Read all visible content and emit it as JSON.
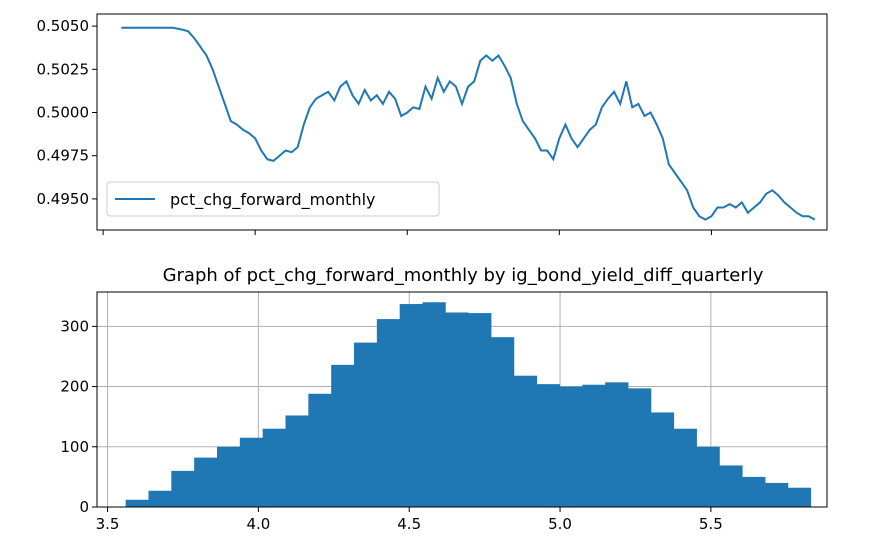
{
  "chart_data": [
    {
      "type": "line",
      "title": "",
      "xlabel": "",
      "ylabel": "",
      "x_tick_labels_visible": false,
      "xlim": [
        3.48,
        5.88
      ],
      "ylim": [
        0.4932,
        0.5057
      ],
      "y_ticks": [
        0.495,
        0.4975,
        0.5,
        0.5025,
        0.505
      ],
      "y_tick_labels": [
        "0.4950",
        "0.4975",
        "0.5000",
        "0.5025",
        "0.5050"
      ],
      "x_ticks": [
        3.5,
        4.0,
        4.5,
        5.0,
        5.5
      ],
      "grid": false,
      "legend": {
        "position": "lower-left",
        "entries": [
          "pct_chg_forward_monthly"
        ]
      },
      "colors": {
        "series": "#1f77b4"
      },
      "series": [
        {
          "name": "pct_chg_forward_monthly",
          "x": [
            3.56,
            3.6,
            3.65,
            3.7,
            3.73,
            3.76,
            3.78,
            3.8,
            3.82,
            3.84,
            3.86,
            3.88,
            3.9,
            3.92,
            3.94,
            3.96,
            3.98,
            4.0,
            4.02,
            4.04,
            4.06,
            4.08,
            4.1,
            4.12,
            4.14,
            4.16,
            4.18,
            4.2,
            4.22,
            4.24,
            4.26,
            4.28,
            4.3,
            4.32,
            4.34,
            4.36,
            4.38,
            4.4,
            4.42,
            4.44,
            4.46,
            4.48,
            4.5,
            4.52,
            4.54,
            4.56,
            4.58,
            4.6,
            4.62,
            4.64,
            4.66,
            4.68,
            4.7,
            4.72,
            4.74,
            4.76,
            4.78,
            4.8,
            4.82,
            4.84,
            4.86,
            4.88,
            4.9,
            4.92,
            4.94,
            4.96,
            4.98,
            5.0,
            5.02,
            5.04,
            5.06,
            5.08,
            5.1,
            5.12,
            5.14,
            5.16,
            5.18,
            5.2,
            5.22,
            5.24,
            5.26,
            5.28,
            5.3,
            5.32,
            5.34,
            5.36,
            5.38,
            5.4,
            5.42,
            5.44,
            5.46,
            5.48,
            5.5,
            5.52,
            5.54,
            5.56,
            5.58,
            5.6,
            5.62,
            5.64,
            5.66,
            5.68,
            5.7,
            5.72,
            5.74,
            5.76,
            5.78,
            5.8,
            5.82,
            5.84
          ],
          "y": [
            0.5049,
            0.5049,
            0.5049,
            0.5049,
            0.5049,
            0.5048,
            0.5047,
            0.5043,
            0.5038,
            0.5033,
            0.5025,
            0.5015,
            0.5005,
            0.4995,
            0.4993,
            0.499,
            0.4988,
            0.4985,
            0.4978,
            0.4973,
            0.4972,
            0.4975,
            0.4978,
            0.4977,
            0.498,
            0.4993,
            0.5003,
            0.5008,
            0.501,
            0.5012,
            0.5007,
            0.5015,
            0.5018,
            0.501,
            0.5005,
            0.5013,
            0.5007,
            0.501,
            0.5005,
            0.5012,
            0.5008,
            0.4998,
            0.5,
            0.5003,
            0.5002,
            0.5015,
            0.5008,
            0.502,
            0.5012,
            0.5018,
            0.5015,
            0.5005,
            0.5015,
            0.5018,
            0.503,
            0.5033,
            0.503,
            0.5033,
            0.5027,
            0.502,
            0.5005,
            0.4995,
            0.499,
            0.4985,
            0.4978,
            0.4978,
            0.4973,
            0.4985,
            0.4993,
            0.4985,
            0.498,
            0.4985,
            0.499,
            0.4993,
            0.5003,
            0.5008,
            0.5012,
            0.5005,
            0.5018,
            0.5003,
            0.5005,
            0.4998,
            0.5,
            0.4993,
            0.4985,
            0.497,
            0.4965,
            0.496,
            0.4955,
            0.4945,
            0.494,
            0.4938,
            0.494,
            0.4945,
            0.4945,
            0.4947,
            0.4945,
            0.4948,
            0.4942,
            0.4945,
            0.4948,
            0.4953,
            0.4955,
            0.4952,
            0.4948,
            0.4945,
            0.4942,
            0.494,
            0.494,
            0.4938
          ]
        }
      ]
    },
    {
      "type": "bar",
      "title": "Graph of pct_chg_forward_monthly by ig_bond_yield_diff_quarterly",
      "xlabel": "",
      "ylabel": "",
      "xlim": [
        3.465,
        5.885
      ],
      "ylim": [
        0,
        357
      ],
      "x_ticks": [
        3.5,
        4.0,
        4.5,
        5.0,
        5.5
      ],
      "x_tick_labels": [
        "3.5",
        "4.0",
        "4.5",
        "5.0",
        "5.5"
      ],
      "y_ticks": [
        0,
        100,
        200,
        300
      ],
      "y_tick_labels": [
        "0",
        "100",
        "200",
        "300"
      ],
      "grid": true,
      "colors": {
        "bars": "#1f77b4",
        "grid": "#b0b0b0"
      },
      "bin_start": 3.56,
      "bin_width": 0.0757,
      "values": [
        12,
        27,
        60,
        82,
        100,
        115,
        130,
        152,
        188,
        236,
        273,
        312,
        337,
        340,
        323,
        322,
        282,
        218,
        204,
        200,
        203,
        207,
        197,
        157,
        130,
        100,
        69,
        50,
        40,
        32
      ]
    }
  ]
}
